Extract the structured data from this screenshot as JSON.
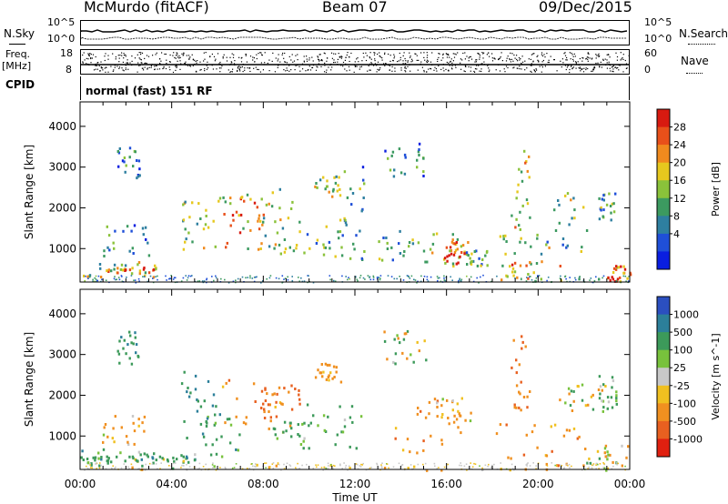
{
  "header": {
    "title": "McMurdo (fitACF)",
    "beam": "Beam 07",
    "date": "09/Dec/2015"
  },
  "noise_panel": {
    "left_label": "N.Sky",
    "right_label": "N.Search",
    "left_ticks": [
      "10^5",
      "10^0"
    ],
    "right_ticks": [
      "10^5",
      "10^0"
    ]
  },
  "freq_panel": {
    "left_label_top": "Freq.",
    "left_label_bottom": "[MHz]",
    "right_label": "Nave",
    "left_ticks": [
      "18",
      "8"
    ],
    "right_ticks": [
      "60",
      "0"
    ]
  },
  "cpid_panel": {
    "label": "CPID",
    "value": "normal (fast) 151 RF"
  },
  "chart_data": [
    {
      "type": "heatmap",
      "name": "power",
      "ylabel": "Slant Range [km]",
      "xlabel": "",
      "ylim": [
        180,
        4600
      ],
      "yticks": [
        1000,
        2000,
        3000,
        4000
      ],
      "xlim": [
        0,
        24
      ],
      "colorbar": {
        "label": "Power [dB]",
        "ticks": [
          "4",
          "8",
          "12",
          "16",
          "20",
          "24",
          "28"
        ],
        "colors": [
          "#0a1ee0",
          "#1f4fd8",
          "#2e7fa0",
          "#3c9a60",
          "#8ac23a",
          "#e6c81e",
          "#f08a1e",
          "#e8501a",
          "#d81a10"
        ]
      },
      "regions": [
        {
          "t0": 0.0,
          "t1": 3.3,
          "r0": 300,
          "r1": 700,
          "v": 16
        },
        {
          "t0": 1.0,
          "t1": 3.3,
          "r0": 420,
          "r1": 560,
          "v": 24
        },
        {
          "t0": 1.0,
          "t1": 3.0,
          "r0": 800,
          "r1": 1600,
          "v": 10
        },
        {
          "t0": 1.6,
          "t1": 2.6,
          "r0": 2700,
          "r1": 3600,
          "v": 8
        },
        {
          "t0": 4.4,
          "t1": 5.6,
          "r0": 1000,
          "r1": 2200,
          "v": 14
        },
        {
          "t0": 5.4,
          "t1": 8.8,
          "r0": 900,
          "r1": 2500,
          "v": 18
        },
        {
          "t0": 6.0,
          "t1": 8.0,
          "r0": 1400,
          "r1": 2300,
          "v": 22
        },
        {
          "t0": 7.6,
          "t1": 9.6,
          "r0": 900,
          "r1": 2300,
          "v": 14
        },
        {
          "t0": 9.6,
          "t1": 11.6,
          "r0": 800,
          "r1": 1800,
          "v": 13
        },
        {
          "t0": 10.2,
          "t1": 11.4,
          "r0": 2300,
          "r1": 2800,
          "v": 16
        },
        {
          "t0": 11.4,
          "t1": 12.4,
          "r0": 700,
          "r1": 3100,
          "v": 10
        },
        {
          "t0": 13.2,
          "t1": 15.0,
          "r0": 2800,
          "r1": 3600,
          "v": 9
        },
        {
          "t0": 13.0,
          "t1": 15.2,
          "r0": 700,
          "r1": 1500,
          "v": 12
        },
        {
          "t0": 15.2,
          "t1": 17.0,
          "r0": 600,
          "r1": 1400,
          "v": 18
        },
        {
          "t0": 15.8,
          "t1": 16.8,
          "r0": 650,
          "r1": 1200,
          "v": 26
        },
        {
          "t0": 16.8,
          "t1": 17.8,
          "r0": 600,
          "r1": 1000,
          "v": 12
        },
        {
          "t0": 17.8,
          "t1": 24.0,
          "r0": 200,
          "r1": 700,
          "v": 20
        },
        {
          "t0": 18.2,
          "t1": 20.2,
          "r0": 300,
          "r1": 1400,
          "v": 17
        },
        {
          "t0": 18.8,
          "t1": 19.6,
          "r0": 1400,
          "r1": 3500,
          "v": 18
        },
        {
          "t0": 20.2,
          "t1": 22.2,
          "r0": 500,
          "r1": 2400,
          "v": 14
        },
        {
          "t0": 22.6,
          "t1": 23.4,
          "r0": 1700,
          "r1": 2400,
          "v": 10
        },
        {
          "t0": 23.0,
          "t1": 24.0,
          "r0": 200,
          "r1": 600,
          "v": 26
        }
      ]
    },
    {
      "type": "heatmap",
      "name": "velocity",
      "ylabel": "Slant Range [km]",
      "xlabel": "Time UT",
      "ylim": [
        180,
        4600
      ],
      "yticks": [
        1000,
        2000,
        3000,
        4000
      ],
      "xlim": [
        0,
        24
      ],
      "xticks": [
        "00:00",
        "04:00",
        "08:00",
        "12:00",
        "16:00",
        "20:00",
        "00:00"
      ],
      "colorbar": {
        "label": "Velocity [m s^-1]",
        "ticks": [
          "1000",
          "500",
          "100",
          "25",
          "-25",
          "-100",
          "-500",
          "-1000"
        ],
        "colors": [
          "#2b4fc0",
          "#2c7f9a",
          "#3c9a5a",
          "#78c23c",
          "#c8c8c8",
          "#f0c020",
          "#f09020",
          "#e86020",
          "#e02010"
        ]
      },
      "regions": [
        {
          "t0": 0.0,
          "t1": 1.2,
          "r0": 300,
          "r1": 700,
          "v": 300
        },
        {
          "t0": 1.2,
          "t1": 5.2,
          "r0": 350,
          "r1": 650,
          "v": 150
        },
        {
          "t0": 2.0,
          "t1": 5.2,
          "r0": 400,
          "r1": 600,
          "v": 350
        },
        {
          "t0": 0.8,
          "t1": 2.8,
          "r0": 800,
          "r1": 1600,
          "v": -200
        },
        {
          "t0": 1.6,
          "t1": 2.6,
          "r0": 2700,
          "r1": 3600,
          "v": 400
        },
        {
          "t0": 4.4,
          "t1": 6.0,
          "r0": 900,
          "r1": 2600,
          "v": 400
        },
        {
          "t0": 5.4,
          "t1": 7.0,
          "r0": 500,
          "r1": 1600,
          "v": 300
        },
        {
          "t0": 6.0,
          "t1": 9.4,
          "r0": 1200,
          "r1": 2400,
          "v": -300
        },
        {
          "t0": 7.4,
          "t1": 9.6,
          "r0": 1400,
          "r1": 2300,
          "v": -700
        },
        {
          "t0": 8.4,
          "t1": 9.8,
          "r0": 700,
          "r1": 1400,
          "v": 200
        },
        {
          "t0": 9.8,
          "t1": 12.4,
          "r0": 700,
          "r1": 1800,
          "v": 250
        },
        {
          "t0": 10.2,
          "t1": 11.4,
          "r0": 2300,
          "r1": 2800,
          "v": -200
        },
        {
          "t0": 13.2,
          "t1": 15.2,
          "r0": 2800,
          "r1": 3600,
          "v": 0
        },
        {
          "t0": 13.6,
          "t1": 16.8,
          "r0": 600,
          "r1": 1900,
          "v": -300
        },
        {
          "t0": 15.4,
          "t1": 17.2,
          "r0": 1400,
          "r1": 2000,
          "v": -150
        },
        {
          "t0": 17.8,
          "t1": 22.0,
          "r0": 300,
          "r1": 1400,
          "v": -300
        },
        {
          "t0": 18.8,
          "t1": 19.6,
          "r0": 1400,
          "r1": 3500,
          "v": -400
        },
        {
          "t0": 20.8,
          "t1": 22.8,
          "r0": 1600,
          "r1": 2300,
          "v": 0
        },
        {
          "t0": 22.0,
          "t1": 24.0,
          "r0": 300,
          "r1": 800,
          "v": 10
        },
        {
          "t0": 22.6,
          "t1": 23.4,
          "r0": 1700,
          "r1": 2500,
          "v": 200
        },
        {
          "t0": 0.0,
          "t1": 24.0,
          "r0": 180,
          "r1": 320,
          "v": -80
        }
      ]
    }
  ]
}
